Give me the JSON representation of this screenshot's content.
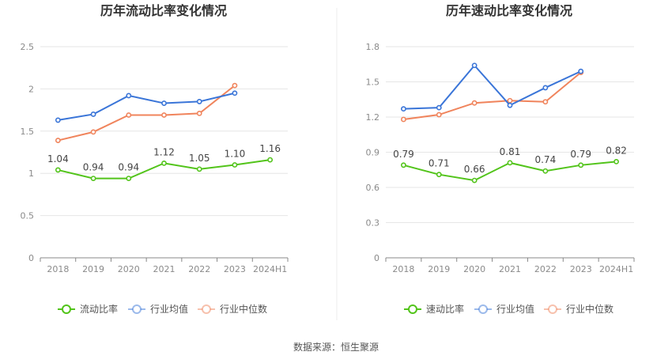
{
  "footer": {
    "source": "数据来源：恒生聚源"
  },
  "chart_data": [
    {
      "type": "line",
      "title": "历年流动比率变化情况",
      "categories": [
        "2018",
        "2019",
        "2020",
        "2021",
        "2022",
        "2023",
        "2024H1"
      ],
      "yticks": [
        "0",
        "0.5",
        "1",
        "1.5",
        "2",
        "2.5"
      ],
      "ylim": [
        0,
        2.5
      ],
      "grid": true,
      "legend_position": "bottom",
      "series": [
        {
          "name": "流动比率",
          "color": "#52c41a",
          "values": [
            1.04,
            0.94,
            0.94,
            1.12,
            1.05,
            1.1,
            1.16
          ],
          "labels": [
            "1.04",
            "0.94",
            "0.94",
            "1.12",
            "1.05",
            "1.10",
            "1.16"
          ]
        },
        {
          "name": "行业均值",
          "color": "#3a75d8",
          "values": [
            1.63,
            1.7,
            1.92,
            1.83,
            1.85,
            1.95,
            null
          ]
        },
        {
          "name": "行业中位数",
          "color": "#f0845c",
          "values": [
            1.39,
            1.49,
            1.69,
            1.69,
            1.71,
            2.04,
            null
          ]
        }
      ]
    },
    {
      "type": "line",
      "title": "历年速动比率变化情况",
      "categories": [
        "2018",
        "2019",
        "2020",
        "2021",
        "2022",
        "2023",
        "2024H1"
      ],
      "yticks": [
        "0",
        "0.3",
        "0.6",
        "0.9",
        "1.2",
        "1.5",
        "1.8"
      ],
      "ylim": [
        0,
        1.8
      ],
      "grid": true,
      "legend_position": "bottom",
      "series": [
        {
          "name": "速动比率",
          "color": "#52c41a",
          "values": [
            0.79,
            0.71,
            0.66,
            0.81,
            0.74,
            0.79,
            0.82
          ],
          "labels": [
            "0.79",
            "0.71",
            "0.66",
            "0.81",
            "0.74",
            "0.79",
            "0.82"
          ]
        },
        {
          "name": "行业均值",
          "color": "#3a75d8",
          "values": [
            1.27,
            1.28,
            1.64,
            1.3,
            1.45,
            1.59,
            null
          ]
        },
        {
          "name": "行业中位数",
          "color": "#f0845c",
          "values": [
            1.18,
            1.22,
            1.32,
            1.34,
            1.33,
            1.58,
            null
          ]
        }
      ]
    }
  ]
}
